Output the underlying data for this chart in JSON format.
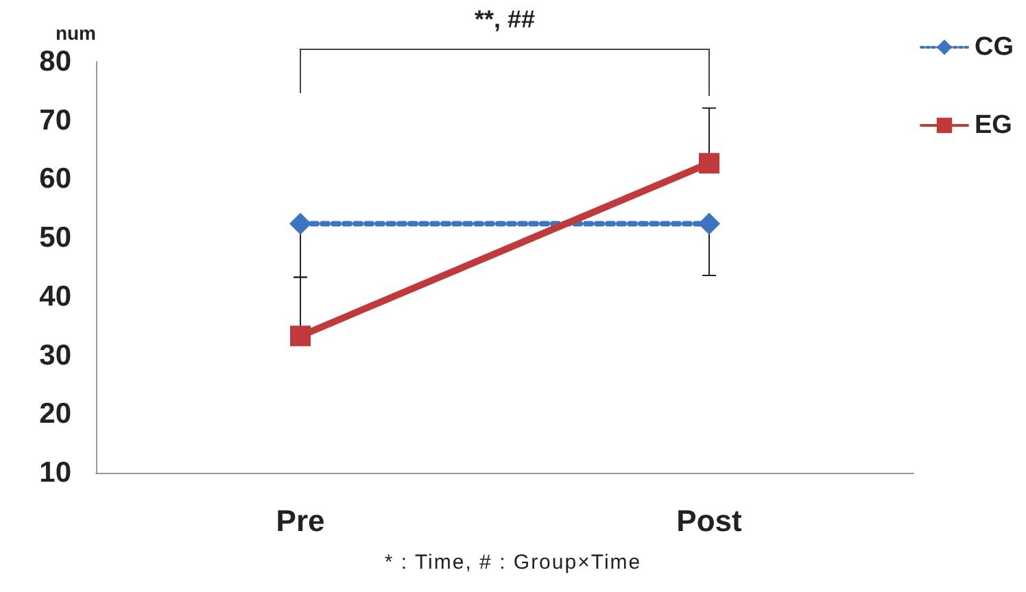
{
  "chart_data": {
    "type": "line",
    "ylabel": "num",
    "categories": [
      "Pre",
      "Post"
    ],
    "series": [
      {
        "name": "CG",
        "color": "#3d74c0",
        "values": [
          52.4,
          52.4
        ],
        "errors": [
          [
            43.3,
            52.4
          ],
          [
            43.6,
            52.4
          ]
        ],
        "marker": "diamond",
        "line_style": "dotted"
      },
      {
        "name": "EG",
        "color": "#c0393b",
        "values": [
          33.3,
          62.7
        ],
        "errors": [
          [
            33.3,
            43.3
          ],
          [
            62.7,
            72.1
          ]
        ],
        "marker": "square",
        "line_style": "solid"
      }
    ],
    "ylim": [
      10,
      80
    ],
    "yticks": [
      10,
      20,
      30,
      40,
      50,
      60,
      70,
      80
    ],
    "grid": false,
    "legend": "top right",
    "annotations": [
      "**, ##",
      "* : Time, # : Group×Time"
    ]
  }
}
